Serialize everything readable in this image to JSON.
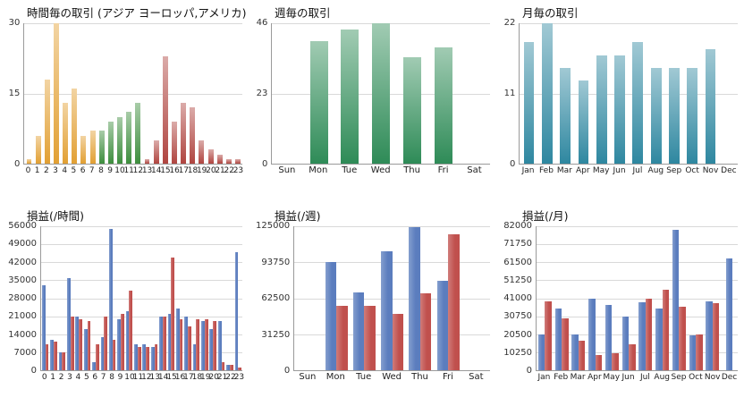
{
  "page": {
    "background": "#ffffff"
  },
  "chart_data": [
    {
      "type": "bar",
      "title": "時間毎の取引 (アジア ヨーロッパ,アメリカ)",
      "xlabel": "",
      "ylabel": "",
      "categories": [
        "0",
        "1",
        "2",
        "3",
        "4",
        "5",
        "6",
        "7",
        "8",
        "9",
        "10",
        "11",
        "12",
        "13",
        "14",
        "15",
        "16",
        "17",
        "18",
        "19",
        "20",
        "21",
        "22",
        "23"
      ],
      "values": [
        1,
        6,
        18,
        30,
        13,
        16,
        6,
        7,
        7,
        9,
        10,
        11,
        13,
        1,
        5,
        23,
        9,
        13,
        12,
        5,
        3,
        2,
        1,
        1
      ],
      "bar_groups": [
        "asia",
        "asia",
        "asia",
        "asia",
        "asia",
        "asia",
        "asia",
        "asia",
        "europe",
        "europe",
        "europe",
        "europe",
        "europe",
        "america",
        "america",
        "america",
        "america",
        "america",
        "america",
        "america",
        "america",
        "america",
        "america",
        "america"
      ],
      "palette": {
        "asia": "#e2a033",
        "europe": "#3e8e3e",
        "america": "#b04540"
      },
      "group_labels": {
        "asia": "アジア",
        "europe": "ヨーロッパ",
        "america": "アメリカ"
      },
      "gradient": true,
      "yticks": [
        0,
        15,
        30
      ],
      "ylim": [
        0,
        30
      ],
      "grid": true,
      "legend": "none"
    },
    {
      "type": "bar",
      "title": "週毎の取引",
      "xlabel": "",
      "ylabel": "",
      "categories": [
        "Sun",
        "Mon",
        "Tue",
        "Wed",
        "Thu",
        "Fri",
        "Sat"
      ],
      "values": [
        0,
        40,
        44,
        46,
        35,
        38,
        0
      ],
      "color": "#2e8b57",
      "gradient": true,
      "yticks": [
        0,
        23,
        46
      ],
      "ylim": [
        0,
        46
      ],
      "grid": true,
      "legend": "none"
    },
    {
      "type": "bar",
      "title": "月毎の取引",
      "xlabel": "",
      "ylabel": "",
      "categories": [
        "Jan",
        "Feb",
        "Mar",
        "Apr",
        "May",
        "Jun",
        "Jul",
        "Aug",
        "Sep",
        "Oct",
        "Nov",
        "Dec"
      ],
      "values": [
        19,
        22,
        15,
        13,
        17,
        17,
        19,
        15,
        15,
        15,
        18,
        0
      ],
      "color": "#2e87a0",
      "gradient": true,
      "yticks": [
        0,
        11,
        22
      ],
      "ylim": [
        0,
        22
      ],
      "grid": true,
      "legend": "none"
    },
    {
      "type": "bar",
      "title": "損益(/時間)",
      "xlabel": "",
      "ylabel": "",
      "categories": [
        "0",
        "1",
        "2",
        "3",
        "4",
        "5",
        "6",
        "7",
        "8",
        "9",
        "10",
        "11",
        "12",
        "13",
        "14",
        "15",
        "16",
        "17",
        "18",
        "19",
        "20",
        "21",
        "22",
        "23"
      ],
      "series": [
        {
          "name": "series-blue",
          "color": "#5b7dbe",
          "values": [
            33000,
            12000,
            7000,
            36000,
            21000,
            16000,
            3000,
            13000,
            55000,
            20000,
            23000,
            10000,
            10000,
            9000,
            21000,
            22000,
            24000,
            21000,
            10000,
            19000,
            16000,
            19000,
            2000,
            46000
          ]
        },
        {
          "name": "series-red",
          "color": "#c0504d",
          "values": [
            10000,
            11000,
            7000,
            21000,
            20000,
            19000,
            10000,
            21000,
            12000,
            22000,
            31000,
            9000,
            9000,
            10000,
            21000,
            44000,
            20000,
            17000,
            20000,
            20000,
            19000,
            3000,
            2000,
            1000
          ]
        }
      ],
      "yticks": [
        0,
        7000,
        14000,
        21000,
        28000,
        35000,
        42000,
        49000,
        56000
      ],
      "ylim": [
        0,
        56000
      ],
      "grid": true,
      "legend": "none"
    },
    {
      "type": "bar",
      "title": "損益(/週)",
      "xlabel": "",
      "ylabel": "",
      "categories": [
        "Sun",
        "Mon",
        "Tue",
        "Wed",
        "Thu",
        "Fri",
        "Sat"
      ],
      "series": [
        {
          "name": "series-blue",
          "color": "#5b7dbe",
          "values": [
            0,
            93750,
            67500,
            103000,
            124000,
            78000,
            0
          ]
        },
        {
          "name": "series-red",
          "color": "#c0504d",
          "values": [
            0,
            56000,
            56000,
            49000,
            67000,
            118000,
            0
          ]
        }
      ],
      "yticks": [
        0,
        31250,
        62500,
        93750,
        125000
      ],
      "ylim": [
        0,
        125000
      ],
      "grid": true,
      "legend": "none"
    },
    {
      "type": "bar",
      "title": "損益(/月)",
      "xlabel": "",
      "ylabel": "",
      "categories": [
        "Jan",
        "Feb",
        "Mar",
        "Apr",
        "May",
        "Jun",
        "Jul",
        "Aug",
        "Sep",
        "Oct",
        "Nov",
        "Dec"
      ],
      "series": [
        {
          "name": "series-blue",
          "color": "#5b7dbe",
          "values": [
            20500,
            35000,
            20500,
            41000,
            37000,
            30750,
            38500,
            35000,
            80000,
            20000,
            39000,
            63500
          ]
        },
        {
          "name": "series-red",
          "color": "#c0504d",
          "values": [
            39000,
            29500,
            17000,
            8500,
            9500,
            15000,
            41000,
            46000,
            36000,
            20500,
            38000,
            0
          ]
        }
      ],
      "yticks": [
        0,
        10250,
        20500,
        30750,
        41000,
        51250,
        61500,
        71750,
        82000
      ],
      "ylim": [
        0,
        82000
      ],
      "grid": true,
      "legend": "none"
    }
  ]
}
